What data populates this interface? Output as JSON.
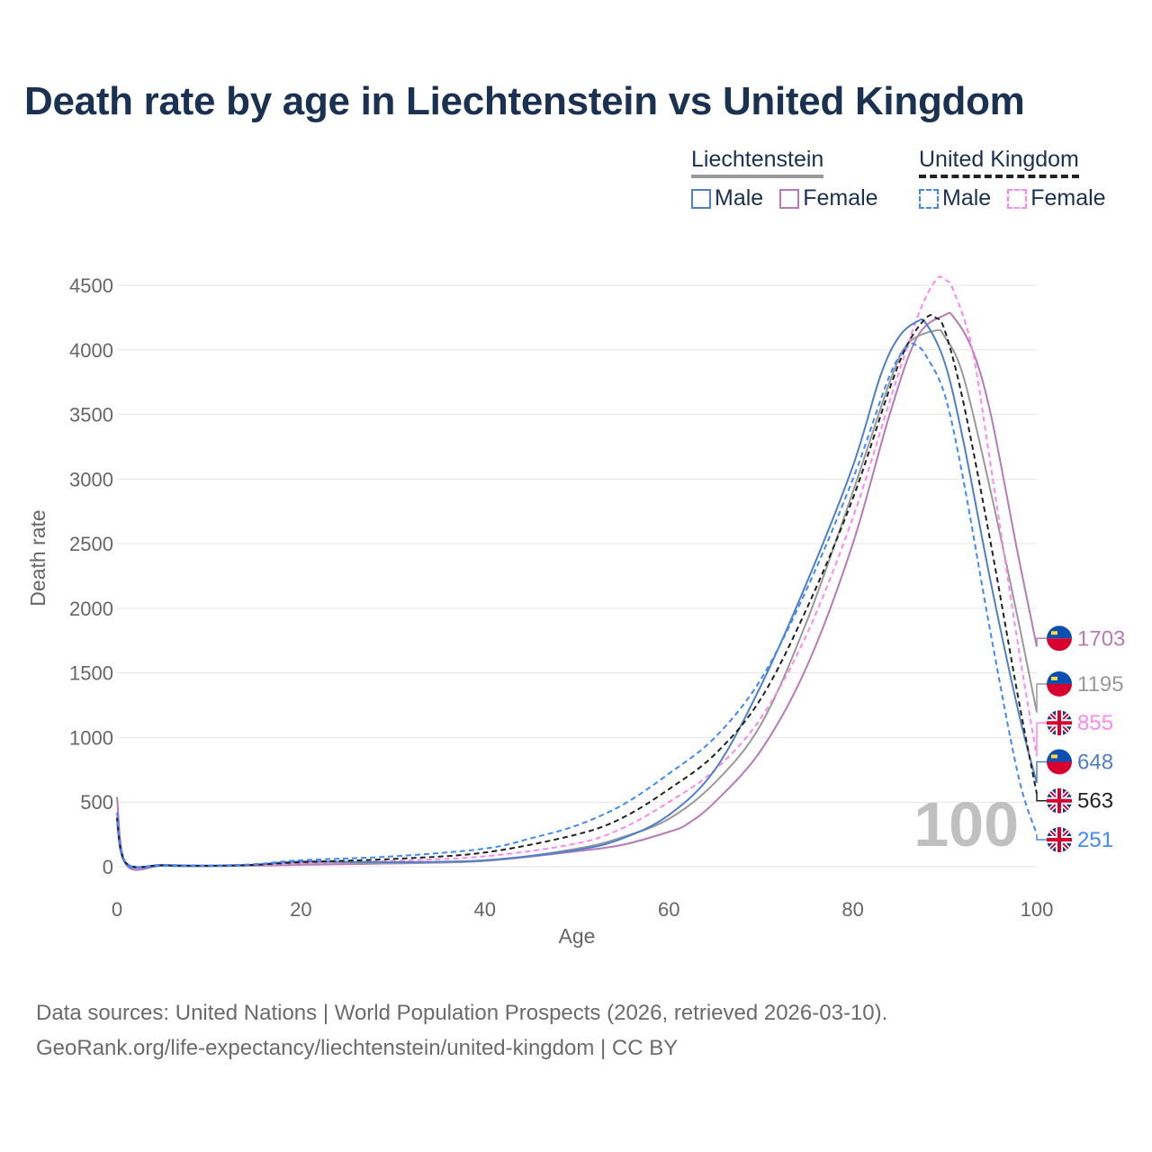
{
  "title": "Death rate by age in Liechtenstein vs United Kingdom",
  "legend": {
    "groups": [
      {
        "label": "Liechtenstein",
        "line_color": "#999999",
        "dashed": false,
        "items": [
          {
            "label": "Male",
            "color": "#4f7fcb"
          },
          {
            "label": "Female",
            "color": "#b67ab8"
          }
        ]
      },
      {
        "label": "United Kingdom",
        "line_color": "#222222",
        "dashed": true,
        "items": [
          {
            "label": "Male",
            "color": "#4088ff"
          },
          {
            "label": "Female",
            "color": "#ff88ee"
          }
        ]
      }
    ]
  },
  "chart_data": {
    "type": "line",
    "title": "Death rate by age in Liechtenstein vs United Kingdom",
    "xlabel": "Age",
    "ylabel": "Death rate",
    "xlim": [
      0,
      100
    ],
    "ylim": [
      0,
      4500
    ],
    "xticks": [
      0,
      20,
      40,
      60,
      80,
      100
    ],
    "yticks": [
      0,
      500,
      1000,
      1500,
      2000,
      2500,
      3000,
      3500,
      4000,
      4500
    ],
    "grid": "horizontal",
    "frame_label": "100",
    "series": [
      {
        "name": "Liechtenstein Female",
        "country": "Liechtenstein",
        "color": "#b67ab8",
        "dashed": false,
        "end_label": "1703",
        "x": [
          0,
          1,
          5,
          10,
          15,
          20,
          30,
          40,
          50,
          55,
          60,
          62,
          65,
          70,
          75,
          80,
          84,
          87,
          90,
          91,
          93,
          95,
          98,
          100
        ],
        "y": [
          540,
          15,
          8,
          5,
          8,
          15,
          25,
          45,
          120,
          170,
          270,
          330,
          500,
          900,
          1550,
          2500,
          3500,
          4100,
          4270,
          4250,
          4000,
          3500,
          2400,
          1703
        ]
      },
      {
        "name": "Liechtenstein",
        "country": "Liechtenstein",
        "color": "#999999",
        "dashed": false,
        "end_label": "1195",
        "x": [
          0,
          1,
          5,
          10,
          15,
          20,
          30,
          40,
          50,
          55,
          60,
          65,
          70,
          75,
          80,
          84,
          86,
          89,
          90,
          92,
          95,
          98,
          100
        ],
        "y": [
          330,
          20,
          8,
          5,
          10,
          25,
          30,
          45,
          140,
          230,
          370,
          650,
          1100,
          1900,
          2900,
          3750,
          4050,
          4150,
          4100,
          3800,
          2900,
          1900,
          1195
        ]
      },
      {
        "name": "United Kingdom Female",
        "country": "United Kingdom",
        "color": "#ff88ee",
        "dashed": true,
        "end_label": "855",
        "x": [
          0,
          1,
          5,
          10,
          15,
          20,
          30,
          40,
          50,
          55,
          60,
          65,
          70,
          75,
          80,
          84,
          87,
          89,
          90,
          91,
          93,
          95,
          98,
          100
        ],
        "y": [
          330,
          25,
          10,
          8,
          12,
          25,
          45,
          80,
          180,
          300,
          500,
          750,
          1150,
          1800,
          2700,
          3600,
          4250,
          4540,
          4545,
          4450,
          4000,
          3100,
          1700,
          855
        ]
      },
      {
        "name": "Liechtenstein Male",
        "country": "Liechtenstein",
        "color": "#4f7fcb",
        "dashed": false,
        "end_label": "648",
        "x": [
          0,
          1,
          5,
          10,
          15,
          20,
          30,
          40,
          50,
          55,
          60,
          65,
          70,
          75,
          80,
          83,
          85,
          87,
          88,
          90,
          92,
          95,
          98,
          100
        ],
        "y": [
          370,
          20,
          8,
          5,
          15,
          40,
          35,
          50,
          130,
          220,
          400,
          750,
          1400,
          2200,
          3100,
          3800,
          4100,
          4220,
          4200,
          3900,
          3300,
          2200,
          1200,
          648
        ]
      },
      {
        "name": "United Kingdom",
        "country": "United Kingdom",
        "color": "#222222",
        "dashed": true,
        "end_label": "563",
        "x": [
          0,
          1,
          5,
          10,
          15,
          20,
          30,
          40,
          50,
          55,
          60,
          65,
          70,
          75,
          80,
          84,
          86,
          88,
          89,
          90,
          92,
          95,
          98,
          100
        ],
        "y": [
          380,
          28,
          12,
          8,
          15,
          35,
          60,
          110,
          250,
          380,
          600,
          870,
          1300,
          2000,
          2850,
          3700,
          4050,
          4250,
          4250,
          4150,
          3600,
          2500,
          1300,
          563
        ]
      },
      {
        "name": "United Kingdom Male",
        "country": "United Kingdom",
        "color": "#4088ff",
        "dashed": true,
        "end_label": "251",
        "x": [
          0,
          1,
          5,
          10,
          15,
          20,
          30,
          40,
          45,
          50,
          55,
          60,
          65,
          70,
          75,
          80,
          84,
          86,
          87,
          88,
          90,
          92,
          95,
          98,
          100
        ],
        "y": [
          420,
          30,
          15,
          10,
          20,
          50,
          80,
          140,
          220,
          320,
          480,
          720,
          1000,
          1450,
          2150,
          3000,
          3800,
          4030,
          4030,
          3950,
          3650,
          3000,
          1800,
          700,
          251
        ]
      }
    ]
  },
  "footer": {
    "line1": "Data sources: United Nations | World Population Prospects (2026, retrieved 2026-03-10).",
    "line2": "GeoRank.org/life-expectancy/liechtenstein/united-kingdom | CC BY"
  }
}
